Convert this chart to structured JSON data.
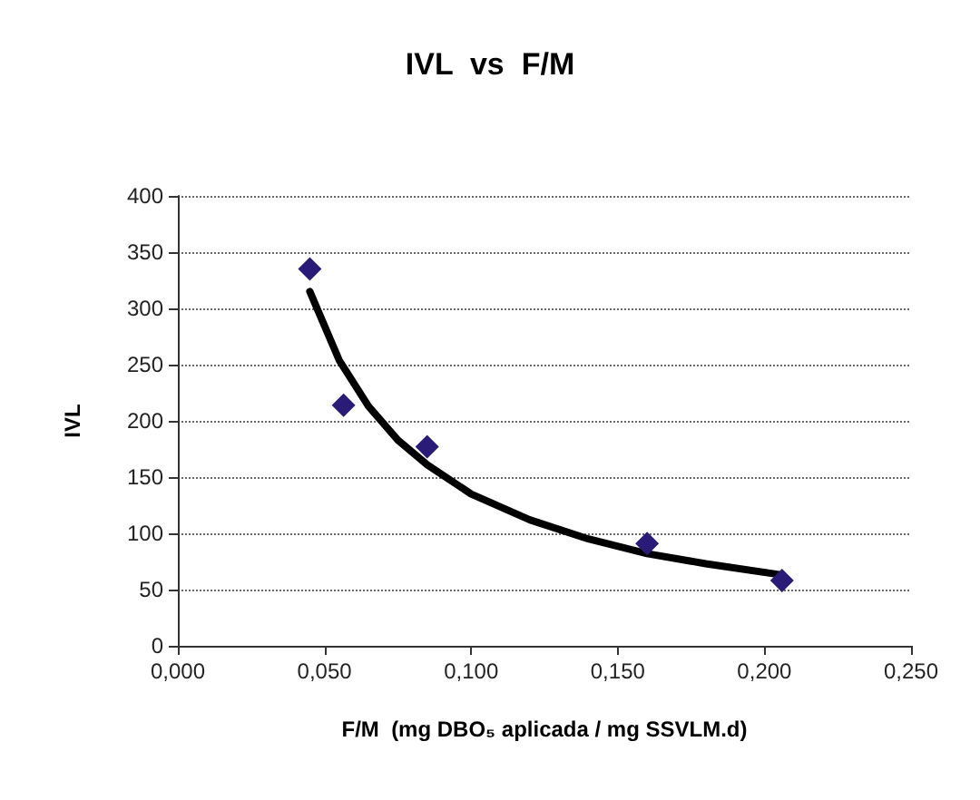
{
  "chart_data": {
    "type": "scatter",
    "title": "IVL  vs  F/M",
    "xlabel": "F/M  (mg DBO₅ aplicada / mg SSVLM.d)",
    "ylabel": "IVL",
    "series": [
      {
        "color": "#2b1b78",
        "marker": "diamond",
        "x": [
          0.045,
          0.0565,
          0.085,
          0.16,
          0.206
        ],
        "values": [
          335,
          214,
          177,
          91,
          58
        ]
      },
      {
        "type": "line",
        "color": "#000000",
        "marker": "none",
        "line_style": "solid",
        "x": [
          0.045,
          0.055,
          0.065,
          0.075,
          0.085,
          0.1,
          0.12,
          0.14,
          0.16,
          0.18,
          0.206
        ],
        "values": [
          315,
          254,
          213,
          183,
          161,
          135,
          112,
          95,
          82,
          73,
          63
        ]
      }
    ],
    "xlim": [
      0,
      0.25
    ],
    "xticks": [
      {
        "value": 0,
        "label": "0,000"
      },
      {
        "value": 0.05,
        "label": "0,050"
      },
      {
        "value": 0.1,
        "label": "0,100"
      },
      {
        "value": 0.15,
        "label": "0,150"
      },
      {
        "value": 0.2,
        "label": "0,200"
      },
      {
        "value": 0.25,
        "label": "0,250"
      }
    ],
    "ylim": [
      0,
      400
    ],
    "yticks": [
      0,
      50,
      100,
      150,
      200,
      250,
      300,
      350,
      400
    ],
    "grid": "y"
  }
}
